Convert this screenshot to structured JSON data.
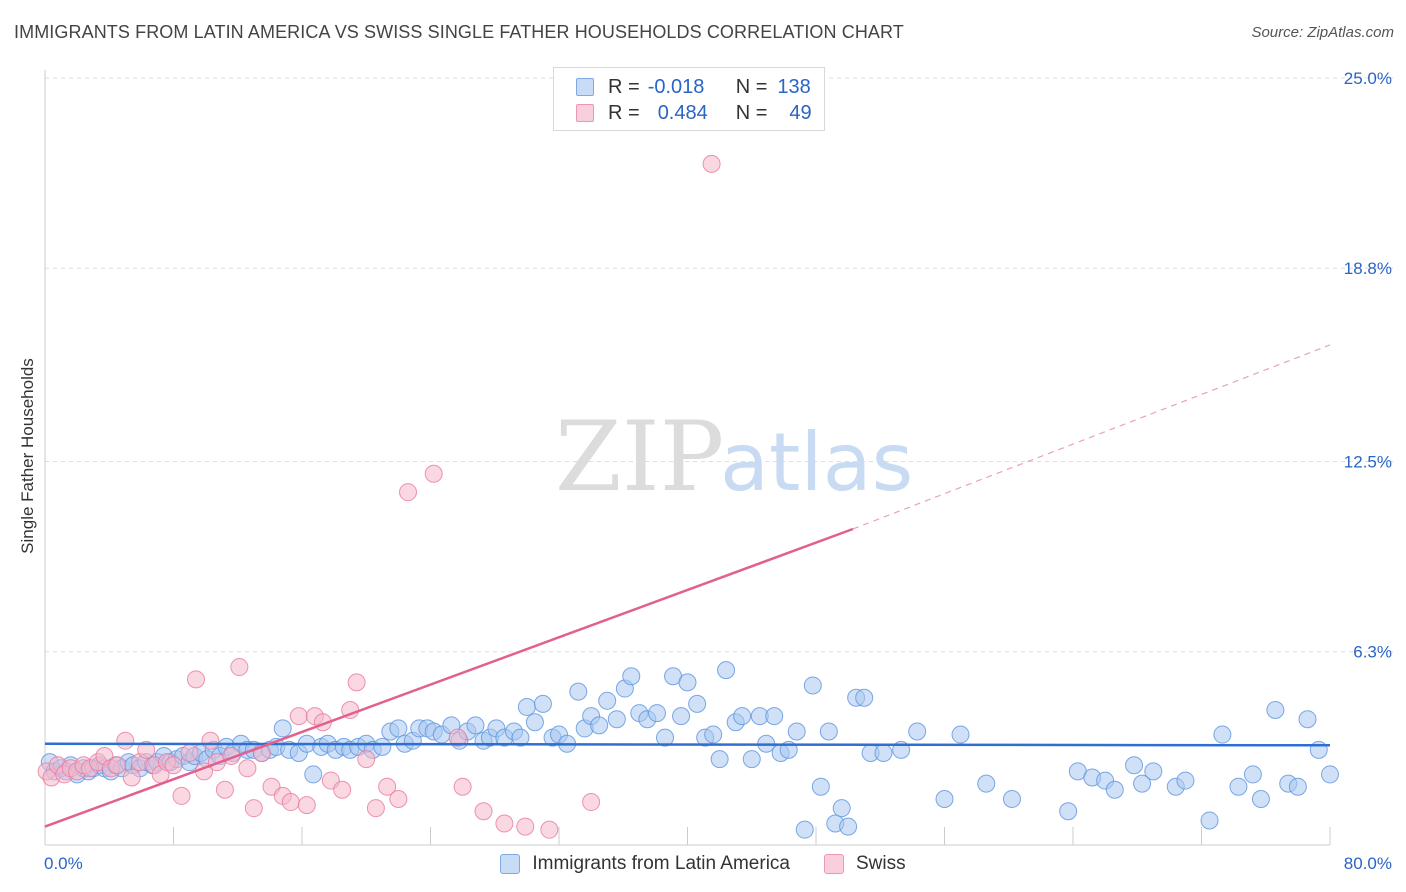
{
  "header": {
    "title": "IMMIGRANTS FROM LATIN AMERICA VS SWISS SINGLE FATHER HOUSEHOLDS CORRELATION CHART",
    "source": "Source: ZipAtlas.com"
  },
  "watermark": {
    "zip": "ZIP",
    "atlas": "atlas"
  },
  "stats": [
    {
      "r_label": "R =",
      "r_value": "-0.018",
      "n_label": "N =",
      "n_value": "138",
      "color": "#a9c8f0"
    },
    {
      "r_label": "R =",
      "r_value": "0.484",
      "n_label": "N =",
      "n_value": "49",
      "color": "#f5b8cb"
    }
  ],
  "legend": [
    {
      "label": "Immigrants from Latin America",
      "color": "#a9c8f0"
    },
    {
      "label": "Swiss",
      "color": "#f5b8cb"
    }
  ],
  "chart_data": {
    "type": "scatter",
    "title": "IMMIGRANTS FROM LATIN AMERICA VS SWISS SINGLE FATHER HOUSEHOLDS CORRELATION CHART",
    "xlabel": "",
    "ylabel": "Single Father Households",
    "xlim": [
      0,
      80
    ],
    "ylim": [
      0,
      25
    ],
    "x_tick_labels": [
      "0.0%",
      "80.0%"
    ],
    "y_ticks": [
      6.3,
      12.5,
      18.8,
      25.0
    ],
    "y_tick_labels": [
      "6.3%",
      "12.5%",
      "18.8%",
      "25.0%"
    ],
    "grid": true,
    "legend_position": "bottom-center",
    "series": [
      {
        "name": "Immigrants from Latin America",
        "color": "#5b93e0",
        "fill": "#a9c8f0",
        "trend": {
          "x": [
            0,
            80
          ],
          "y": [
            3.3,
            3.25
          ],
          "color": "#2f6fd0"
        },
        "points": [
          [
            0.3,
            2.7
          ],
          [
            0.6,
            2.4
          ],
          [
            1.0,
            2.5
          ],
          [
            1.3,
            2.4
          ],
          [
            1.6,
            2.6
          ],
          [
            2.0,
            2.3
          ],
          [
            2.4,
            2.5
          ],
          [
            2.7,
            2.4
          ],
          [
            3.0,
            2.5
          ],
          [
            3.4,
            2.6
          ],
          [
            3.7,
            2.5
          ],
          [
            4.1,
            2.4
          ],
          [
            4.4,
            2.6
          ],
          [
            4.8,
            2.5
          ],
          [
            5.2,
            2.7
          ],
          [
            5.5,
            2.6
          ],
          [
            5.9,
            2.5
          ],
          [
            6.3,
            2.7
          ],
          [
            6.7,
            2.6
          ],
          [
            7.0,
            2.7
          ],
          [
            7.4,
            2.9
          ],
          [
            7.8,
            2.7
          ],
          [
            8.2,
            2.8
          ],
          [
            8.6,
            2.9
          ],
          [
            9.0,
            2.7
          ],
          [
            9.3,
            2.9
          ],
          [
            9.7,
            3.0
          ],
          [
            10.1,
            2.8
          ],
          [
            10.5,
            3.1
          ],
          [
            10.9,
            2.9
          ],
          [
            11.3,
            3.2
          ],
          [
            11.7,
            3.0
          ],
          [
            12.2,
            3.3
          ],
          [
            12.6,
            3.1
          ],
          [
            13.0,
            3.1
          ],
          [
            13.5,
            3.0
          ],
          [
            14.0,
            3.1
          ],
          [
            14.4,
            3.2
          ],
          [
            14.8,
            3.8
          ],
          [
            15.2,
            3.1
          ],
          [
            15.8,
            3.0
          ],
          [
            16.3,
            3.3
          ],
          [
            16.7,
            2.3
          ],
          [
            17.2,
            3.2
          ],
          [
            17.6,
            3.3
          ],
          [
            18.1,
            3.1
          ],
          [
            18.6,
            3.2
          ],
          [
            19.0,
            3.1
          ],
          [
            19.5,
            3.2
          ],
          [
            20.0,
            3.3
          ],
          [
            20.4,
            3.1
          ],
          [
            21.0,
            3.2
          ],
          [
            21.5,
            3.7
          ],
          [
            22.0,
            3.8
          ],
          [
            22.4,
            3.3
          ],
          [
            22.9,
            3.4
          ],
          [
            23.3,
            3.8
          ],
          [
            23.8,
            3.8
          ],
          [
            24.2,
            3.7
          ],
          [
            24.7,
            3.6
          ],
          [
            25.3,
            3.9
          ],
          [
            25.8,
            3.4
          ],
          [
            26.3,
            3.7
          ],
          [
            26.8,
            3.9
          ],
          [
            27.3,
            3.4
          ],
          [
            27.7,
            3.5
          ],
          [
            28.1,
            3.8
          ],
          [
            28.6,
            3.5
          ],
          [
            29.2,
            3.7
          ],
          [
            29.6,
            3.5
          ],
          [
            30.0,
            4.5
          ],
          [
            30.5,
            4.0
          ],
          [
            31.0,
            4.6
          ],
          [
            31.6,
            3.5
          ],
          [
            32.0,
            3.6
          ],
          [
            32.5,
            3.3
          ],
          [
            33.2,
            5.0
          ],
          [
            33.6,
            3.8
          ],
          [
            34.0,
            4.2
          ],
          [
            34.5,
            3.9
          ],
          [
            35.0,
            4.7
          ],
          [
            35.6,
            4.1
          ],
          [
            36.1,
            5.1
          ],
          [
            36.5,
            5.5
          ],
          [
            37.0,
            4.3
          ],
          [
            37.5,
            4.1
          ],
          [
            38.1,
            4.3
          ],
          [
            38.6,
            3.5
          ],
          [
            39.1,
            5.5
          ],
          [
            39.6,
            4.2
          ],
          [
            40.0,
            5.3
          ],
          [
            40.6,
            4.6
          ],
          [
            41.1,
            3.5
          ],
          [
            41.6,
            3.6
          ],
          [
            42.0,
            2.8
          ],
          [
            42.4,
            5.7
          ],
          [
            43.0,
            4.0
          ],
          [
            43.4,
            4.2
          ],
          [
            44.0,
            2.8
          ],
          [
            44.5,
            4.2
          ],
          [
            44.9,
            3.3
          ],
          [
            45.4,
            4.2
          ],
          [
            45.8,
            3.0
          ],
          [
            46.3,
            3.1
          ],
          [
            46.8,
            3.7
          ],
          [
            47.3,
            0.5
          ],
          [
            47.8,
            5.2
          ],
          [
            48.3,
            1.9
          ],
          [
            48.8,
            3.7
          ],
          [
            49.2,
            0.7
          ],
          [
            49.6,
            1.2
          ],
          [
            50.0,
            0.6
          ],
          [
            50.5,
            4.8
          ],
          [
            51.0,
            4.8
          ],
          [
            51.4,
            3.0
          ],
          [
            52.2,
            3.0
          ],
          [
            53.3,
            3.1
          ],
          [
            54.3,
            3.7
          ],
          [
            56.0,
            1.5
          ],
          [
            57.0,
            3.6
          ],
          [
            58.6,
            2.0
          ],
          [
            60.2,
            1.5
          ],
          [
            63.7,
            1.1
          ],
          [
            64.3,
            2.4
          ],
          [
            65.2,
            2.2
          ],
          [
            66.0,
            2.1
          ],
          [
            66.6,
            1.8
          ],
          [
            67.8,
            2.6
          ],
          [
            68.3,
            2.0
          ],
          [
            69.0,
            2.4
          ],
          [
            70.4,
            1.9
          ],
          [
            71.0,
            2.1
          ],
          [
            72.5,
            0.8
          ],
          [
            73.3,
            3.6
          ],
          [
            74.3,
            1.9
          ],
          [
            75.2,
            2.3
          ],
          [
            75.7,
            1.5
          ],
          [
            76.6,
            4.4
          ],
          [
            77.4,
            2.0
          ],
          [
            78.0,
            1.9
          ],
          [
            78.6,
            4.1
          ],
          [
            79.3,
            3.1
          ],
          [
            80.0,
            2.3
          ]
        ]
      },
      {
        "name": "Swiss",
        "color": "#e8799f",
        "fill": "#f5b8cb",
        "trend": {
          "x": [
            0,
            50.3
          ],
          "y": [
            0.6,
            10.3
          ],
          "dashed_to": {
            "x": 80,
            "y": 16.3
          },
          "color": "#e06090"
        },
        "points": [
          [
            0.1,
            2.4
          ],
          [
            0.4,
            2.2
          ],
          [
            0.8,
            2.6
          ],
          [
            1.2,
            2.3
          ],
          [
            1.6,
            2.5
          ],
          [
            2.0,
            2.4
          ],
          [
            2.4,
            2.6
          ],
          [
            2.8,
            2.5
          ],
          [
            3.3,
            2.7
          ],
          [
            3.7,
            2.9
          ],
          [
            4.1,
            2.5
          ],
          [
            4.5,
            2.6
          ],
          [
            5.0,
            3.4
          ],
          [
            5.4,
            2.2
          ],
          [
            5.9,
            2.7
          ],
          [
            6.3,
            3.1
          ],
          [
            6.8,
            2.6
          ],
          [
            7.2,
            2.3
          ],
          [
            7.6,
            2.7
          ],
          [
            8.0,
            2.6
          ],
          [
            8.5,
            1.6
          ],
          [
            9.0,
            3.0
          ],
          [
            9.4,
            5.4
          ],
          [
            9.9,
            2.4
          ],
          [
            10.3,
            3.4
          ],
          [
            10.7,
            2.7
          ],
          [
            11.2,
            1.8
          ],
          [
            11.6,
            2.9
          ],
          [
            12.1,
            5.8
          ],
          [
            12.6,
            2.5
          ],
          [
            13.0,
            1.2
          ],
          [
            13.5,
            3.0
          ],
          [
            14.1,
            1.9
          ],
          [
            14.8,
            1.6
          ],
          [
            15.3,
            1.4
          ],
          [
            15.8,
            4.2
          ],
          [
            16.3,
            1.3
          ],
          [
            16.8,
            4.2
          ],
          [
            17.3,
            4.0
          ],
          [
            17.8,
            2.1
          ],
          [
            18.5,
            1.8
          ],
          [
            19.0,
            4.4
          ],
          [
            19.4,
            5.3
          ],
          [
            20.0,
            2.8
          ],
          [
            20.6,
            1.2
          ],
          [
            21.3,
            1.9
          ],
          [
            22.0,
            1.5
          ],
          [
            22.6,
            11.5
          ],
          [
            24.2,
            12.1
          ],
          [
            25.7,
            3.5
          ],
          [
            26.0,
            1.9
          ],
          [
            27.3,
            1.1
          ],
          [
            28.6,
            0.7
          ],
          [
            29.9,
            0.6
          ],
          [
            31.4,
            0.5
          ],
          [
            34.0,
            1.4
          ],
          [
            41.5,
            22.2
          ]
        ]
      }
    ]
  }
}
